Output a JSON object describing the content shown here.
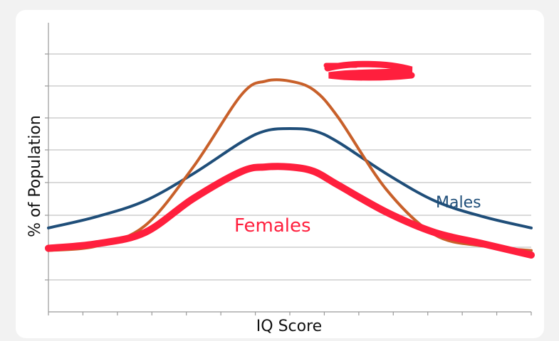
{
  "chart_data": {
    "type": "line",
    "xlabel": "IQ Score",
    "ylabel": "% of Population",
    "x_range": [
      0,
      100
    ],
    "y_range": [
      0,
      100
    ],
    "grid": "horizontal",
    "x": [
      0,
      10,
      20,
      30,
      40,
      45,
      50,
      55,
      60,
      70,
      80,
      90,
      100
    ],
    "series": [
      {
        "name": "Males",
        "color": "#1f4e79",
        "values": [
          23,
          28,
          35,
          47,
          61,
          66,
          67,
          66,
          61,
          47,
          35,
          28,
          23
        ]
      },
      {
        "name": "",
        "color": "#c8602a",
        "values": [
          13,
          15,
          24,
          50,
          82,
          88,
          88,
          84,
          72,
          40,
          20,
          15,
          13
        ]
      },
      {
        "name": "Females",
        "color": "#ff1f3d",
        "values": [
          14,
          16,
          21,
          36,
          48,
          50,
          50,
          48,
          42,
          30,
          21,
          16,
          11
        ]
      }
    ],
    "annotations": [
      {
        "text": "Males",
        "color": "#1f4e79"
      },
      {
        "text": "Females",
        "color": "#ff1f3d"
      }
    ]
  }
}
